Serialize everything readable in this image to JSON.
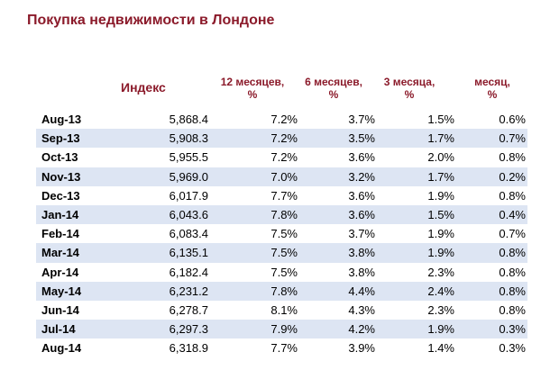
{
  "page": {
    "title": "Покупка недвижимости в Лондоне",
    "title_color": "#8b1a2a",
    "header_color": "#8b1a2a",
    "stripe_color": "#dde5f3"
  },
  "chart_data": {
    "type": "table",
    "title": "Покупка недвижимости в Лондоне",
    "columns": [
      {
        "line1": "Индекс",
        "line2": ""
      },
      {
        "line1": "12 месяцев,",
        "line2": "%"
      },
      {
        "line1": "6 месяцев,",
        "line2": "%"
      },
      {
        "line1": "3 месяца,",
        "line2": "%"
      },
      {
        "line1": "месяц,",
        "line2": "%"
      }
    ],
    "rows": [
      {
        "date": "Aug-13",
        "index": "5,868.4",
        "m12": "7.2%",
        "m6": "3.7%",
        "m3": "1.5%",
        "m1": "0.6%"
      },
      {
        "date": "Sep-13",
        "index": "5,908.3",
        "m12": "7.2%",
        "m6": "3.5%",
        "m3": "1.7%",
        "m1": "0.7%"
      },
      {
        "date": "Oct-13",
        "index": "5,955.5",
        "m12": "7.2%",
        "m6": "3.6%",
        "m3": "2.0%",
        "m1": "0.8%"
      },
      {
        "date": "Nov-13",
        "index": "5,969.0",
        "m12": "7.0%",
        "m6": "3.2%",
        "m3": "1.7%",
        "m1": "0.2%"
      },
      {
        "date": "Dec-13",
        "index": "6,017.9",
        "m12": "7.7%",
        "m6": "3.6%",
        "m3": "1.9%",
        "m1": "0.8%"
      },
      {
        "date": "Jan-14",
        "index": "6,043.6",
        "m12": "7.8%",
        "m6": "3.6%",
        "m3": "1.5%",
        "m1": "0.4%"
      },
      {
        "date": "Feb-14",
        "index": "6,083.4",
        "m12": "7.5%",
        "m6": "3.7%",
        "m3": "1.9%",
        "m1": "0.7%"
      },
      {
        "date": "Mar-14",
        "index": "6,135.1",
        "m12": "7.5%",
        "m6": "3.8%",
        "m3": "1.9%",
        "m1": "0.8%"
      },
      {
        "date": "Apr-14",
        "index": "6,182.4",
        "m12": "7.5%",
        "m6": "3.8%",
        "m3": "2.3%",
        "m1": "0.8%"
      },
      {
        "date": "May-14",
        "index": "6,231.2",
        "m12": "7.8%",
        "m6": "4.4%",
        "m3": "2.4%",
        "m1": "0.8%"
      },
      {
        "date": "Jun-14",
        "index": "6,278.7",
        "m12": "8.1%",
        "m6": "4.3%",
        "m3": "2.3%",
        "m1": "0.8%"
      },
      {
        "date": "Jul-14",
        "index": "6,297.3",
        "m12": "7.9%",
        "m6": "4.2%",
        "m3": "1.9%",
        "m1": "0.3%"
      },
      {
        "date": "Aug-14",
        "index": "6,318.9",
        "m12": "7.7%",
        "m6": "3.9%",
        "m3": "1.4%",
        "m1": "0.3%"
      }
    ]
  }
}
